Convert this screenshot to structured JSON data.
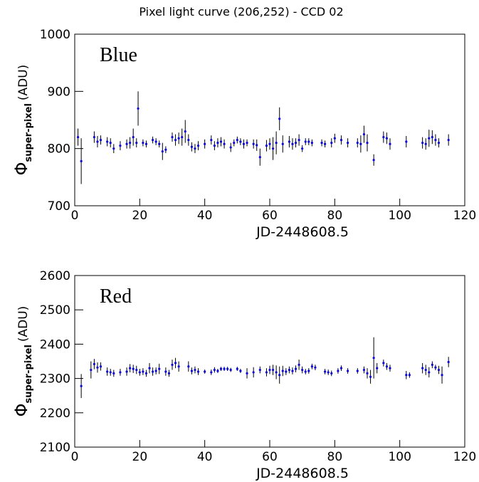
{
  "chart_data": [
    {
      "type": "scatter",
      "title": "Pixel light curve (206,252) - CCD 02",
      "label": "Blue",
      "xlabel": "JD-2448608.5",
      "ylabel": "Φ",
      "ylabel_sub": "super-pixel",
      "ylabel_unit": "(ADU)",
      "xlim": [
        0,
        120
      ],
      "xticks": [
        0,
        20,
        40,
        60,
        80,
        100,
        120
      ],
      "ylim": [
        700,
        1000
      ],
      "yticks": [
        700,
        800,
        900,
        1000
      ],
      "x": [
        1,
        2,
        6,
        7,
        8,
        10,
        11,
        12,
        14,
        16,
        17,
        18,
        19,
        19.5,
        21,
        22,
        24,
        25,
        26,
        27,
        28,
        30,
        31,
        32,
        33,
        34,
        35,
        36,
        37,
        38,
        40,
        42,
        43,
        44,
        45,
        46,
        48,
        49,
        50,
        51,
        52,
        53,
        55,
        56,
        57,
        59,
        60,
        61,
        62,
        63,
        64,
        66,
        67,
        68,
        69,
        70,
        71,
        72,
        73,
        76,
        77,
        79,
        80,
        82,
        84,
        87,
        88,
        89,
        90,
        92,
        95,
        96,
        97,
        102,
        107,
        108,
        109,
        110,
        111,
        112,
        115
      ],
      "series": [
        {
          "color": "#0000ff",
          "values": [
            820,
            778,
            820,
            812,
            815,
            812,
            810,
            800,
            805,
            808,
            810,
            820,
            810,
            870,
            810,
            808,
            815,
            812,
            808,
            795,
            798,
            820,
            815,
            818,
            820,
            830,
            815,
            803,
            800,
            805,
            808,
            815,
            805,
            810,
            812,
            808,
            802,
            810,
            815,
            812,
            808,
            810,
            808,
            806,
            785,
            805,
            808,
            800,
            810,
            852,
            808,
            812,
            808,
            810,
            815,
            800,
            812,
            812,
            810,
            810,
            808,
            810,
            818,
            815,
            810,
            810,
            808,
            825,
            810,
            780,
            820,
            818,
            808,
            812,
            810,
            808,
            818,
            820,
            815,
            810,
            815
          ],
          "errors": [
            15,
            40,
            10,
            10,
            8,
            8,
            8,
            8,
            8,
            8,
            10,
            15,
            8,
            30,
            6,
            6,
            6,
            6,
            6,
            15,
            6,
            8,
            10,
            10,
            15,
            20,
            10,
            8,
            8,
            8,
            8,
            8,
            8,
            8,
            8,
            8,
            8,
            6,
            6,
            6,
            8,
            6,
            8,
            10,
            15,
            10,
            10,
            20,
            20,
            20,
            15,
            10,
            10,
            8,
            10,
            6,
            6,
            6,
            6,
            6,
            6,
            8,
            8,
            8,
            8,
            8,
            15,
            15,
            15,
            10,
            10,
            10,
            10,
            10,
            10,
            10,
            15,
            12,
            10,
            8,
            10
          ]
        }
      ]
    },
    {
      "type": "scatter",
      "label": "Red",
      "xlabel": "JD-2448608.5",
      "ylabel": "Φ",
      "ylabel_sub": "super-pixel",
      "ylabel_unit": "(ADU)",
      "xlim": [
        0,
        120
      ],
      "xticks": [
        0,
        20,
        40,
        60,
        80,
        100,
        120
      ],
      "ylim": [
        2100,
        2600
      ],
      "yticks": [
        2100,
        2200,
        2300,
        2400,
        2500,
        2600
      ],
      "x": [
        2,
        5,
        6,
        7,
        8,
        10,
        11,
        12,
        14,
        16,
        17,
        18,
        19,
        20,
        21,
        22,
        23,
        24,
        25,
        26,
        28,
        29,
        30,
        31,
        32,
        35,
        36,
        37,
        38,
        40,
        42,
        43,
        44,
        45,
        46,
        47,
        48,
        50,
        51,
        53,
        55,
        57,
        59,
        60,
        61,
        62,
        63,
        64,
        65,
        66,
        67,
        68,
        69,
        70,
        71,
        72,
        73,
        74,
        77,
        78,
        79,
        81,
        82,
        84,
        87,
        89,
        90,
        91,
        92,
        93,
        95,
        96,
        97,
        102,
        103,
        107,
        108,
        109,
        110,
        111,
        112,
        113,
        115
      ],
      "series": [
        {
          "color": "#0000ff",
          "values": [
            2278,
            2325,
            2342,
            2332,
            2335,
            2320,
            2318,
            2315,
            2318,
            2320,
            2330,
            2328,
            2325,
            2318,
            2320,
            2315,
            2330,
            2320,
            2322,
            2328,
            2320,
            2315,
            2340,
            2345,
            2335,
            2335,
            2322,
            2325,
            2320,
            2320,
            2318,
            2325,
            2322,
            2328,
            2328,
            2328,
            2325,
            2328,
            2322,
            2315,
            2318,
            2325,
            2318,
            2325,
            2325,
            2318,
            2310,
            2322,
            2320,
            2325,
            2322,
            2328,
            2340,
            2325,
            2320,
            2322,
            2335,
            2332,
            2320,
            2318,
            2315,
            2322,
            2330,
            2322,
            2322,
            2325,
            2315,
            2305,
            2360,
            2330,
            2345,
            2335,
            2330,
            2310,
            2310,
            2330,
            2325,
            2318,
            2340,
            2332,
            2325,
            2310,
            2348
          ],
          "errors": [
            35,
            25,
            15,
            15,
            12,
            12,
            10,
            10,
            10,
            12,
            12,
            12,
            12,
            10,
            10,
            10,
            15,
            12,
            10,
            15,
            12,
            10,
            15,
            15,
            15,
            15,
            10,
            10,
            10,
            6,
            8,
            8,
            6,
            6,
            6,
            6,
            6,
            6,
            6,
            15,
            15,
            10,
            12,
            12,
            15,
            20,
            25,
            15,
            10,
            10,
            10,
            10,
            15,
            10,
            8,
            8,
            8,
            8,
            8,
            8,
            8,
            8,
            8,
            8,
            8,
            10,
            15,
            20,
            60,
            15,
            10,
            10,
            10,
            12,
            8,
            15,
            15,
            15,
            10,
            8,
            12,
            25,
            15
          ]
        }
      ]
    }
  ]
}
